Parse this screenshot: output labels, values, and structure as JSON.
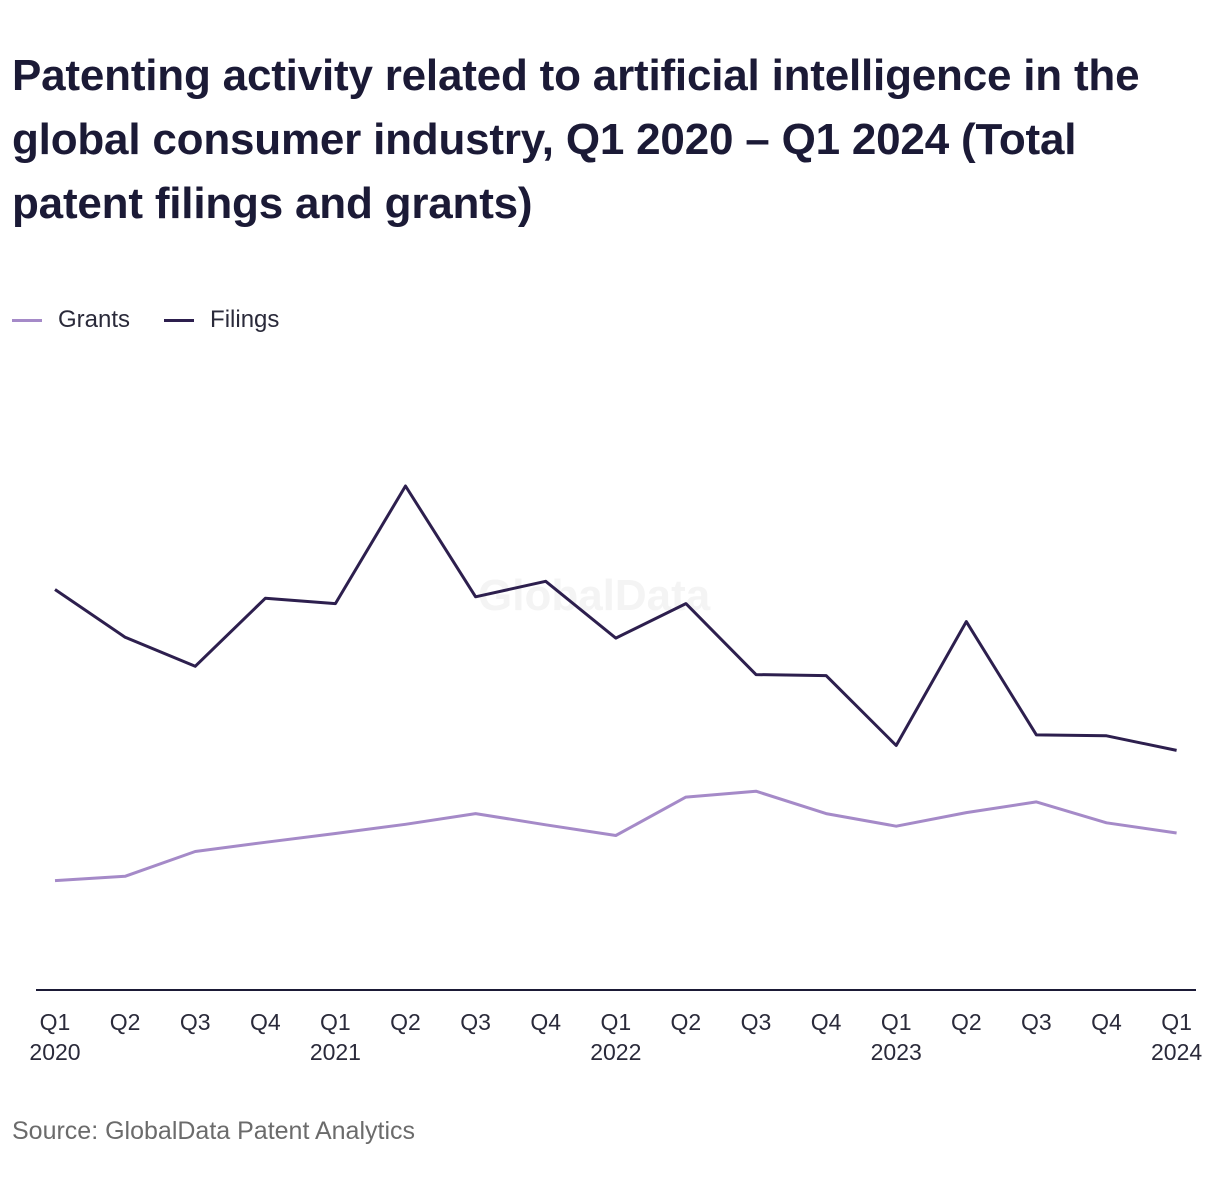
{
  "title": "Patenting activity related to artificial intelligence in the global consumer industry, Q1 2020 – Q1 2024 (Total patent filings and grants)",
  "source": "Source: GlobalData Patent Analytics",
  "watermark": "GlobalData",
  "colors": {
    "grants": "#a58ac8",
    "filings": "#2d1f4e",
    "axis": "#1b1a36"
  },
  "chart_data": {
    "type": "line",
    "title": "Patenting activity related to artificial intelligence in the global consumer industry, Q1 2020 – Q1 2024 (Total patent filings and grants)",
    "xlabel": "",
    "ylabel": "",
    "grid": false,
    "legend_position": "top-left",
    "ylim": [
      0,
      100
    ],
    "categories": [
      [
        "Q1",
        "2020"
      ],
      [
        "Q2",
        ""
      ],
      [
        "Q3",
        ""
      ],
      [
        "Q4",
        ""
      ],
      [
        "Q1",
        "2021"
      ],
      [
        "Q2",
        ""
      ],
      [
        "Q3",
        ""
      ],
      [
        "Q4",
        ""
      ],
      [
        "Q1",
        "2022"
      ],
      [
        "Q2",
        ""
      ],
      [
        "Q3",
        ""
      ],
      [
        "Q4",
        ""
      ],
      [
        "Q1",
        "2023"
      ],
      [
        "Q2",
        ""
      ],
      [
        "Q3",
        ""
      ],
      [
        "Q4",
        ""
      ],
      [
        "Q1",
        "2024"
      ]
    ],
    "series": [
      {
        "name": "Grants",
        "color": "#a58ac8",
        "values": [
          22.5,
          23.4,
          28.5,
          30.4,
          32.2,
          34.1,
          36.3,
          34.0,
          31.8,
          39.7,
          40.9,
          36.3,
          33.7,
          36.5,
          38.7,
          34.4,
          32.3
        ]
      },
      {
        "name": "Filings",
        "color": "#2d1f4e",
        "values": [
          82.4,
          72.6,
          66.6,
          80.6,
          79.5,
          103.7,
          80.9,
          84.1,
          72.4,
          79.5,
          64.9,
          64.7,
          50.3,
          75.8,
          52.5,
          52.3,
          49.3
        ]
      }
    ]
  }
}
